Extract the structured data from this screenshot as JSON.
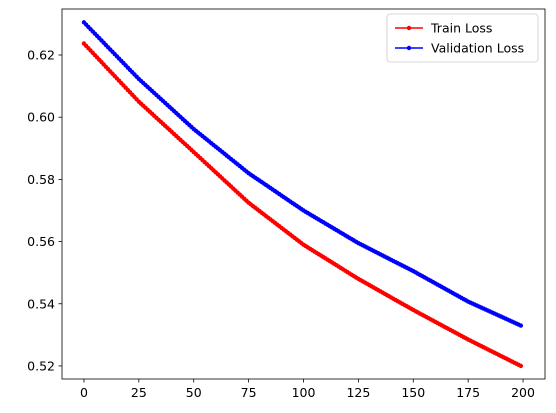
{
  "chart_data": {
    "type": "line",
    "title": "",
    "xlabel": "",
    "ylabel": "",
    "xlim": [
      -10,
      210
    ],
    "ylim": [
      0.5158,
      0.6348
    ],
    "x_ticks": [
      0,
      25,
      50,
      75,
      100,
      125,
      150,
      175,
      200
    ],
    "y_ticks": [
      0.52,
      0.54,
      0.56,
      0.58,
      0.6,
      0.62
    ],
    "x_tick_labels": [
      "0",
      "25",
      "50",
      "75",
      "100",
      "125",
      "150",
      "175",
      "200"
    ],
    "y_tick_labels": [
      "0.52",
      "0.54",
      "0.56",
      "0.58",
      "0.60",
      "0.62"
    ],
    "grid": false,
    "legend_position": "top-right",
    "x": {
      "start": 0,
      "end": 199,
      "step": 1
    },
    "series": [
      {
        "name": "Train Loss",
        "color": "#ff0000",
        "marker": "circle",
        "values_anchor": {
          "x": [
            0,
            25,
            50,
            75,
            100,
            125,
            150,
            175,
            199
          ],
          "y": [
            0.6237,
            0.605,
            0.5888,
            0.5725,
            0.559,
            0.548,
            0.538,
            0.5285,
            0.52
          ]
        }
      },
      {
        "name": "Validation Loss",
        "color": "#0000ff",
        "marker": "circle",
        "values_anchor": {
          "x": [
            0,
            25,
            50,
            75,
            100,
            125,
            150,
            175,
            199
          ],
          "y": [
            0.6305,
            0.6123,
            0.5962,
            0.582,
            0.57,
            0.5595,
            0.5505,
            0.5407,
            0.533
          ]
        }
      }
    ]
  }
}
